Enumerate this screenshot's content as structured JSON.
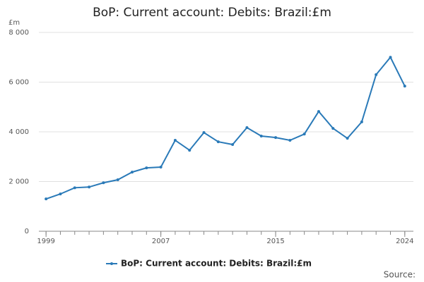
{
  "chart_data": {
    "type": "line",
    "title": "BoP: Current account: Debits: Brazil:£m",
    "y_unit": "£m",
    "source": "Source:",
    "x": [
      1999,
      2000,
      2001,
      2002,
      2003,
      2004,
      2005,
      2006,
      2007,
      2008,
      2009,
      2010,
      2011,
      2012,
      2013,
      2014,
      2015,
      2016,
      2017,
      2018,
      2019,
      2020,
      2021,
      2022,
      2023,
      2024
    ],
    "series": [
      {
        "name": "BoP: Current account: Debits: Brazil:£m",
        "color": "#2a7ab8",
        "values": [
          1300,
          1500,
          1750,
          1780,
          1950,
          2070,
          2380,
          2550,
          2580,
          3660,
          3260,
          3970,
          3600,
          3490,
          4170,
          3830,
          3770,
          3660,
          3910,
          4820,
          4140,
          3740,
          4400,
          6300,
          7000,
          5840
        ]
      }
    ],
    "xlim": [
      1998.5,
      2024.6
    ],
    "xticks": [
      1999,
      2007,
      2015,
      2024
    ],
    "ylim": [
      0,
      8000
    ],
    "yticks": [
      0,
      {
        "value": 2000,
        "label": "2 000"
      },
      {
        "value": 4000,
        "label": "4 000"
      },
      {
        "value": 6000,
        "label": "6 000"
      },
      {
        "value": 8000,
        "label": "8 000"
      }
    ],
    "grid": true
  }
}
